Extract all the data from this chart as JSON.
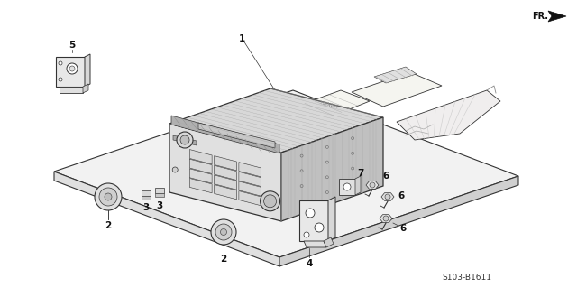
{
  "background_color": "#ffffff",
  "diagram_code": "S103-B1611",
  "line_color": "#333333",
  "light_gray": "#e8e8e8",
  "mid_gray": "#c8c8c8",
  "dark_gray": "#a0a0a0",
  "tray_top_color": "#f2f2f2",
  "tray_side_color": "#e0e0e0",
  "radio_front_color": "#e0e0e0",
  "radio_top_color": "#d8d8d8",
  "radio_right_color": "#c0c0c0",
  "hatch_color": "#999999"
}
